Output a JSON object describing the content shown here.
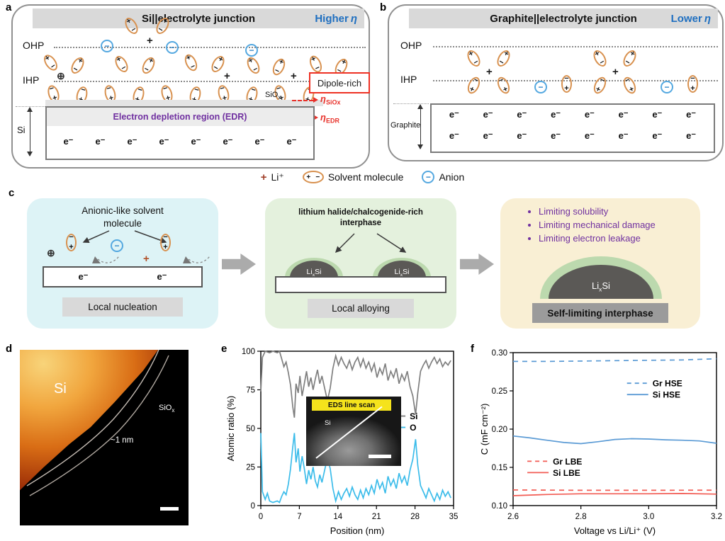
{
  "figure": {
    "panel_a": {
      "label": "a",
      "title": "Si||electrolyte junction",
      "eta_note_text": "Higher",
      "eta_symbol": "η",
      "ohp": "OHP",
      "ihp": "IHP",
      "dipole_rich": "Dipole-rich",
      "oxide_label": "SiO",
      "oxide_sub": "x",
      "eta_siox": {
        "eta": "η",
        "sub": "SiOx"
      },
      "eta_edr": {
        "eta": "η",
        "sub": "EDR"
      },
      "edr_text": "Electron depletion region (EDR)",
      "electrode_label": "Si",
      "electron": "e⁻",
      "electron_count": 8
    },
    "panel_b": {
      "label": "b",
      "title": "Graphite||electrolyte junction",
      "eta_note_text": "Lower",
      "eta_symbol": "η",
      "ohp": "OHP",
      "ihp": "IHP",
      "electrode_label": "Graphite",
      "electron": "e⁻",
      "electron_rows": 2,
      "electron_count": 8
    },
    "legend": {
      "li": "Li⁺",
      "solvent": "Solvent molecule",
      "anion": "Anion"
    },
    "panel_c": {
      "label": "c",
      "box1": {
        "title_line1": "Anionic-like solvent",
        "title_line2": "molecule",
        "electron": "e⁻",
        "tag": "Local nucleation"
      },
      "box2": {
        "title_line1": "lithium halide/chalcogenide-rich",
        "title_line2": "interphase",
        "dome_label": "Li",
        "dome_sub": "x",
        "dome_suffix": "Si",
        "tag": "Local alloying"
      },
      "box3": {
        "bullets": [
          "Limiting solubility",
          "Limiting mechanical damage",
          "Limiting electron leakage"
        ],
        "dome_label": "Li",
        "dome_sub": "x",
        "dome_suffix": "Si",
        "tag": "Self-limiting interphase"
      }
    },
    "panel_d": {
      "label": "d",
      "si_label": "Si",
      "oxide_label": "SiO",
      "oxide_sub": "x",
      "thickness": "~1 nm"
    },
    "panel_e": {
      "label": "e",
      "inset_title": "EDS line scan",
      "inset_si": "Si"
    },
    "panel_f": {
      "label": "f"
    },
    "colors": {
      "solvent_orange": "#d8914f",
      "anion_blue": "#54a8e0",
      "eta_blue": "#1f6fc0",
      "annotation_red": "#e8312a",
      "purple": "#7030a0"
    }
  },
  "chart_data": [
    {
      "id": "chart-e",
      "type": "line",
      "title": "",
      "xlabel": "Position (nm)",
      "ylabel": "Atomic ratio (%)",
      "xlim": [
        0,
        35
      ],
      "ylim": [
        0,
        100
      ],
      "xticks": [
        0,
        7,
        14,
        21,
        28,
        35
      ],
      "yticks": [
        0,
        25,
        50,
        75,
        100
      ],
      "xtick_labels": [
        "0",
        "7",
        "14",
        "21",
        "28",
        "35"
      ],
      "ytick_labels": [
        "0",
        "25",
        "50",
        "75",
        "100"
      ],
      "grid": false,
      "legend_groups": [
        {
          "x": 0.64,
          "y": 0.42,
          "entries": [
            "Si",
            "O"
          ]
        }
      ],
      "series": [
        {
          "name": "Si",
          "color": "#7f7f7f",
          "dash": null,
          "points": [
            [
              0,
              74
            ],
            [
              0.3,
              96
            ],
            [
              0.8,
              100
            ],
            [
              1.6,
              99
            ],
            [
              2.2,
              100
            ],
            [
              3.0,
              99
            ],
            [
              3.4,
              100
            ],
            [
              3.8,
              95
            ],
            [
              4.2,
              90
            ],
            [
              4.6,
              93
            ],
            [
              5.0,
              86
            ],
            [
              5.4,
              78
            ],
            [
              5.8,
              64
            ],
            [
              6.1,
              57
            ],
            [
              6.4,
              79
            ],
            [
              6.8,
              73
            ],
            [
              7.1,
              84
            ],
            [
              7.5,
              71
            ],
            [
              7.9,
              79
            ],
            [
              8.3,
              87
            ],
            [
              8.7,
              77
            ],
            [
              9.1,
              83
            ],
            [
              9.5,
              75
            ],
            [
              9.9,
              82
            ],
            [
              10.3,
              88
            ],
            [
              10.7,
              79
            ],
            [
              11.1,
              84
            ],
            [
              11.6,
              76
            ],
            [
              12.1,
              68
            ],
            [
              12.6,
              76
            ],
            [
              13.1,
              89
            ],
            [
              13.6,
              97
            ],
            [
              14.1,
              91
            ],
            [
              14.6,
              96
            ],
            [
              15.1,
              92
            ],
            [
              15.6,
              89
            ],
            [
              16.1,
              94
            ],
            [
              16.6,
              88
            ],
            [
              17.1,
              93
            ],
            [
              17.6,
              96
            ],
            [
              18.1,
              90
            ],
            [
              18.6,
              95
            ],
            [
              19.1,
              89
            ],
            [
              19.6,
              93
            ],
            [
              20.1,
              87
            ],
            [
              20.6,
              92
            ],
            [
              21.1,
              83
            ],
            [
              21.6,
              89
            ],
            [
              22.1,
              85
            ],
            [
              22.6,
              92
            ],
            [
              23.1,
              81
            ],
            [
              23.6,
              87
            ],
            [
              24.1,
              83
            ],
            [
              24.6,
              89
            ],
            [
              25.1,
              79
            ],
            [
              25.6,
              85
            ],
            [
              26.1,
              81
            ],
            [
              26.6,
              87
            ],
            [
              27.1,
              77
            ],
            [
              27.6,
              71
            ],
            [
              28.1,
              59
            ],
            [
              28.5,
              73
            ],
            [
              29,
              87
            ],
            [
              29.5,
              91
            ],
            [
              30,
              94
            ],
            [
              30.5,
              89
            ],
            [
              31,
              93
            ],
            [
              31.5,
              96
            ],
            [
              32,
              92
            ],
            [
              32.5,
              95
            ],
            [
              33,
              90
            ],
            [
              33.5,
              93
            ],
            [
              34,
              91
            ],
            [
              34.5,
              94
            ]
          ]
        },
        {
          "name": "O",
          "color": "#3bbcea",
          "dash": null,
          "points": [
            [
              0,
              47
            ],
            [
              0.3,
              9
            ],
            [
              0.8,
              4
            ],
            [
              1.2,
              8
            ],
            [
              1.6,
              3
            ],
            [
              2.2,
              2
            ],
            [
              3.0,
              3
            ],
            [
              3.4,
              2
            ],
            [
              3.8,
              6
            ],
            [
              4.2,
              9
            ],
            [
              4.6,
              7
            ],
            [
              5.0,
              14
            ],
            [
              5.4,
              24
            ],
            [
              5.8,
              38
            ],
            [
              6.1,
              47
            ],
            [
              6.4,
              28
            ],
            [
              6.8,
              37
            ],
            [
              7.1,
              22
            ],
            [
              7.5,
              32
            ],
            [
              7.9,
              24
            ],
            [
              8.3,
              14
            ],
            [
              8.7,
              23
            ],
            [
              9.1,
              17
            ],
            [
              9.5,
              25
            ],
            [
              9.9,
              16
            ],
            [
              10.3,
              12
            ],
            [
              10.7,
              20
            ],
            [
              11.1,
              15
            ],
            [
              11.6,
              23
            ],
            [
              12.1,
              31
            ],
            [
              12.6,
              24
            ],
            [
              13.1,
              11
            ],
            [
              13.6,
              3
            ],
            [
              14.1,
              9
            ],
            [
              14.6,
              4
            ],
            [
              15.1,
              8
            ],
            [
              15.6,
              11
            ],
            [
              16.1,
              6
            ],
            [
              16.6,
              12
            ],
            [
              17.1,
              7
            ],
            [
              17.6,
              4
            ],
            [
              18.1,
              10
            ],
            [
              18.6,
              5
            ],
            [
              19.1,
              11
            ],
            [
              19.6,
              7
            ],
            [
              20.1,
              13
            ],
            [
              20.6,
              8
            ],
            [
              21.1,
              17
            ],
            [
              21.6,
              11
            ],
            [
              22.1,
              15
            ],
            [
              22.6,
              8
            ],
            [
              23.1,
              19
            ],
            [
              23.6,
              13
            ],
            [
              24.1,
              17
            ],
            [
              24.6,
              11
            ],
            [
              25.1,
              21
            ],
            [
              25.6,
              15
            ],
            [
              26.1,
              19
            ],
            [
              26.6,
              13
            ],
            [
              27.1,
              23
            ],
            [
              27.6,
              30
            ],
            [
              28.1,
              43
            ],
            [
              28.5,
              26
            ],
            [
              29,
              13
            ],
            [
              29.5,
              9
            ],
            [
              30,
              5
            ],
            [
              30.5,
              11
            ],
            [
              31,
              7
            ],
            [
              31.5,
              3
            ],
            [
              32,
              8
            ],
            [
              32.5,
              4
            ],
            [
              33,
              10
            ],
            [
              33.5,
              6
            ],
            [
              34,
              9
            ],
            [
              34.5,
              5
            ]
          ]
        }
      ]
    },
    {
      "id": "chart-f",
      "type": "line",
      "title": "",
      "xlabel": "Voltage vs Li/Li⁺ (V)",
      "ylabel": "C (mF cm⁻²)",
      "xlim": [
        2.6,
        3.2
      ],
      "ylim": [
        0.1,
        0.3
      ],
      "xticks": [
        2.6,
        2.8,
        3.0,
        3.2
      ],
      "yticks": [
        0.1,
        0.15,
        0.2,
        0.25,
        0.3
      ],
      "xtick_labels": [
        "2.6",
        "2.8",
        "3.0",
        "3.2"
      ],
      "ytick_labels": [
        "0.10",
        "0.15",
        "0.20",
        "0.25",
        "0.30"
      ],
      "grid": false,
      "legend_groups": [
        {
          "x": 0.56,
          "y": 0.2,
          "entries": [
            "Gr HSE",
            "Si HSE"
          ]
        },
        {
          "x": 0.07,
          "y": 0.71,
          "entries": [
            "Gr LBE",
            "Si LBE"
          ]
        }
      ],
      "series": [
        {
          "name": "Gr HSE",
          "color": "#5b9bd5",
          "dash": "7,6",
          "points": [
            [
              2.6,
              0.2885
            ],
            [
              2.7,
              0.2885
            ],
            [
              2.8,
              0.289
            ],
            [
              2.9,
              0.2895
            ],
            [
              3.0,
              0.29
            ],
            [
              3.1,
              0.2905
            ],
            [
              3.2,
              0.292
            ]
          ]
        },
        {
          "name": "Si HSE",
          "color": "#5b9bd5",
          "dash": null,
          "points": [
            [
              2.6,
              0.191
            ],
            [
              2.65,
              0.1885
            ],
            [
              2.7,
              0.1855
            ],
            [
              2.75,
              0.1825
            ],
            [
              2.8,
              0.181
            ],
            [
              2.85,
              0.1835
            ],
            [
              2.9,
              0.1865
            ],
            [
              2.95,
              0.1875
            ],
            [
              3.0,
              0.187
            ],
            [
              3.05,
              0.186
            ],
            [
              3.1,
              0.1855
            ],
            [
              3.15,
              0.1845
            ],
            [
              3.2,
              0.1815
            ]
          ]
        },
        {
          "name": "Gr LBE",
          "color": "#f25c54",
          "dash": "7,6",
          "points": [
            [
              2.6,
              0.1205
            ],
            [
              2.8,
              0.12
            ],
            [
              3.0,
              0.12
            ],
            [
              3.2,
              0.1202
            ]
          ]
        },
        {
          "name": "Si LBE",
          "color": "#f25c54",
          "dash": null,
          "points": [
            [
              2.6,
              0.113
            ],
            [
              2.7,
              0.1145
            ],
            [
              2.8,
              0.1155
            ],
            [
              2.9,
              0.1155
            ],
            [
              3.0,
              0.1155
            ],
            [
              3.1,
              0.1158
            ],
            [
              3.2,
              0.115
            ]
          ]
        }
      ]
    }
  ]
}
